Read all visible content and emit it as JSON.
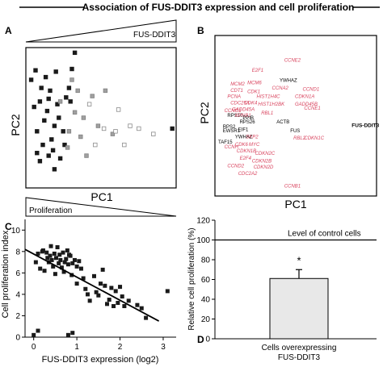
{
  "figure_title": "Association of FUS-DDIT3 expression and cell proliferation",
  "panels": {
    "a": {
      "letter": "A",
      "xlabel": "PC1",
      "ylabel": "PC2",
      "top_wedge_label": "FUS-DDIT3",
      "bottom_wedge_label": "Proliferation"
    },
    "b": {
      "letter": "B",
      "xlabel": "PC1",
      "ylabel": "PC2"
    },
    "c": {
      "letter": "C"
    },
    "d": {
      "letter": "D",
      "annotation": "Level of control cells",
      "significance": "*"
    }
  },
  "colors": {
    "gene_red": "#d9455f",
    "gene_black": "#000000",
    "bar_fill": "#e8e8e8",
    "marker_dark": "#1a1a1a",
    "marker_grey": "#a0a0a0"
  },
  "chart_data": [
    {
      "panel": "A",
      "type": "scatter",
      "xlabel": "PC1",
      "ylabel": "PC2",
      "series": [
        {
          "marker": "dark-filled",
          "points": [
            [
              0.02,
              0.78
            ],
            [
              0.05,
              0.85
            ],
            [
              0.08,
              0.62
            ],
            [
              0.12,
              0.8
            ],
            [
              0.13,
              0.55
            ],
            [
              0.15,
              0.7
            ],
            [
              0.18,
              0.44
            ],
            [
              0.2,
              0.6
            ],
            [
              0.06,
              0.4
            ],
            [
              0.1,
              0.3
            ],
            [
              0.14,
              0.22
            ],
            [
              0.18,
              0.12
            ],
            [
              0.22,
              0.2
            ],
            [
              0.08,
              0.18
            ],
            [
              0.16,
              0.34
            ],
            [
              0.24,
              0.4
            ],
            [
              0.26,
              0.65
            ],
            [
              0.28,
              0.72
            ],
            [
              0.3,
              0.86
            ],
            [
              0.32,
              0.98
            ],
            [
              0.11,
              0.48
            ],
            [
              0.04,
              0.58
            ],
            [
              0.19,
              0.84
            ],
            [
              0.21,
              0.5
            ],
            [
              0.09,
              0.72
            ],
            [
              0.25,
              0.3
            ],
            [
              0.06,
              0.24
            ],
            [
              0.17,
              0.26
            ],
            [
              0.29,
              0.62
            ],
            [
              0.14,
              0.64
            ],
            [
              0.99,
              0.42
            ]
          ]
        },
        {
          "marker": "grey-filled",
          "points": [
            [
              0.22,
              0.62
            ],
            [
              0.3,
              0.78
            ],
            [
              0.34,
              0.7
            ],
            [
              0.38,
              0.5
            ],
            [
              0.44,
              0.66
            ],
            [
              0.48,
              0.44
            ],
            [
              0.53,
              0.7
            ],
            [
              0.58,
              0.38
            ],
            [
              0.28,
              0.4
            ],
            [
              0.32,
              0.54
            ],
            [
              0.36,
              0.36
            ],
            [
              0.27,
              0.28
            ],
            [
              0.4,
              0.22
            ]
          ]
        },
        {
          "marker": "grey-open",
          "points": [
            [
              0.42,
              0.6
            ],
            [
              0.52,
              0.42
            ],
            [
              0.6,
              0.4
            ],
            [
              0.62,
              0.56
            ],
            [
              0.7,
              0.44
            ],
            [
              0.76,
              0.42
            ],
            [
              0.86,
              0.38
            ],
            [
              0.46,
              0.3
            ],
            [
              0.66,
              0.3
            ]
          ]
        }
      ]
    },
    {
      "panel": "B",
      "type": "scatter",
      "xlabel": "PC1",
      "ylabel": "PC2",
      "points": [
        {
          "label": "CCNE2",
          "color": "red",
          "x": 0.43,
          "y": 0.92
        },
        {
          "label": "E2F1",
          "color": "red",
          "x": 0.22,
          "y": 0.84
        },
        {
          "label": "YWHAZ",
          "color": "black",
          "x": 0.4,
          "y": 0.76
        },
        {
          "label": "MCM2",
          "color": "red",
          "x": 0.08,
          "y": 0.73
        },
        {
          "label": "MCM6",
          "color": "red",
          "x": 0.19,
          "y": 0.74
        },
        {
          "label": "CCNA2",
          "color": "red",
          "x": 0.35,
          "y": 0.7
        },
        {
          "label": "CDT1",
          "color": "red",
          "x": 0.08,
          "y": 0.68
        },
        {
          "label": "CDK1",
          "color": "red",
          "x": 0.19,
          "y": 0.67
        },
        {
          "label": "CCND1",
          "color": "red",
          "x": 0.55,
          "y": 0.69
        },
        {
          "label": "HIST1H4C",
          "color": "red",
          "x": 0.25,
          "y": 0.63
        },
        {
          "label": "CDKN1A",
          "color": "red",
          "x": 0.5,
          "y": 0.63
        },
        {
          "label": "PCNA",
          "color": "red",
          "x": 0.06,
          "y": 0.63
        },
        {
          "label": "CDC25A",
          "color": "red",
          "x": 0.08,
          "y": 0.58
        },
        {
          "label": "CDK4",
          "color": "red",
          "x": 0.17,
          "y": 0.58
        },
        {
          "label": "GADD45A",
          "color": "red",
          "x": 0.09,
          "y": 0.53
        },
        {
          "label": "HIST1H2BK",
          "color": "red",
          "x": 0.26,
          "y": 0.57
        },
        {
          "label": "GADD45B",
          "color": "red",
          "x": 0.5,
          "y": 0.57
        },
        {
          "label": "CCNE1",
          "color": "red",
          "x": 0.56,
          "y": 0.54
        },
        {
          "label": "CCNG1",
          "color": "red",
          "x": 0.04,
          "y": 0.52
        },
        {
          "label": "RBL1",
          "color": "red",
          "x": 0.28,
          "y": 0.5
        },
        {
          "label": "RPS10",
          "color": "black",
          "x": 0.06,
          "y": 0.48
        },
        {
          "label": "KPNB1",
          "color": "red",
          "x": 0.11,
          "y": 0.48
        },
        {
          "label": "PPIB",
          "color": "black",
          "x": 0.16,
          "y": 0.46
        },
        {
          "label": "RPS26",
          "color": "black",
          "x": 0.14,
          "y": 0.43
        },
        {
          "label": "ACTB",
          "color": "black",
          "x": 0.38,
          "y": 0.43
        },
        {
          "label": "RPS2",
          "color": "black",
          "x": 0.03,
          "y": 0.39
        },
        {
          "label": "EWSR1",
          "color": "black",
          "x": 0.03,
          "y": 0.36
        },
        {
          "label": "EIF1",
          "color": "black",
          "x": 0.13,
          "y": 0.37
        },
        {
          "label": "FUS-DDIT3",
          "color": "black",
          "x": 0.87,
          "y": 0.4
        },
        {
          "label": "FUS",
          "color": "black",
          "x": 0.47,
          "y": 0.36
        },
        {
          "label": "YWHAZ",
          "color": "black",
          "x": 0.11,
          "y": 0.31
        },
        {
          "label": "SKP2",
          "color": "red",
          "x": 0.18,
          "y": 0.31
        },
        {
          "label": "RBL2",
          "color": "red",
          "x": 0.49,
          "y": 0.3
        },
        {
          "label": "CDKN1C",
          "color": "red",
          "x": 0.56,
          "y": 0.3
        },
        {
          "label": "TAF15",
          "color": "black",
          "x": 0.0,
          "y": 0.27
        },
        {
          "label": "CCNH",
          "color": "red",
          "x": 0.04,
          "y": 0.23
        },
        {
          "label": "CDK6",
          "color": "red",
          "x": 0.11,
          "y": 0.25
        },
        {
          "label": "MYC",
          "color": "red",
          "x": 0.2,
          "y": 0.25
        },
        {
          "label": "CDKN1B",
          "color": "red",
          "x": 0.12,
          "y": 0.2
        },
        {
          "label": "CDKN2C",
          "color": "red",
          "x": 0.24,
          "y": 0.18
        },
        {
          "label": "E2F4",
          "color": "red",
          "x": 0.14,
          "y": 0.14
        },
        {
          "label": "CDKN2B",
          "color": "red",
          "x": 0.22,
          "y": 0.12
        },
        {
          "label": "CCND2",
          "color": "red",
          "x": 0.06,
          "y": 0.08
        },
        {
          "label": "CDKN2D",
          "color": "red",
          "x": 0.23,
          "y": 0.07
        },
        {
          "label": "CDC2A2",
          "color": "red",
          "x": 0.13,
          "y": 0.02
        },
        {
          "label": "CCNB1",
          "color": "red",
          "x": 0.43,
          "y": -0.08
        }
      ]
    },
    {
      "panel": "C",
      "type": "scatter",
      "xlabel": "FUS-DDIT3 expression (log2)",
      "ylabel": "Cell proliferation index",
      "xlim": [
        -0.2,
        3.3
      ],
      "ylim": [
        0,
        11
      ],
      "xticks": [
        0,
        1,
        2,
        3
      ],
      "yticks": [
        0,
        2,
        4,
        6,
        8,
        10
      ],
      "trendline": {
        "x": [
          -0.2,
          2.9
        ],
        "y": [
          8.2,
          1.5
        ]
      },
      "points": [
        [
          0.05,
          7.0
        ],
        [
          0.1,
          7.8
        ],
        [
          0.15,
          6.4
        ],
        [
          0.2,
          8.0
        ],
        [
          0.22,
          8.1
        ],
        [
          0.25,
          6.2
        ],
        [
          0.3,
          7.9
        ],
        [
          0.32,
          7.4
        ],
        [
          0.35,
          7.0
        ],
        [
          0.38,
          7.6
        ],
        [
          0.4,
          8.5
        ],
        [
          0.42,
          7.2
        ],
        [
          0.45,
          6.6
        ],
        [
          0.48,
          7.8
        ],
        [
          0.5,
          5.9
        ],
        [
          0.52,
          7.4
        ],
        [
          0.55,
          8.4
        ],
        [
          0.58,
          6.9
        ],
        [
          0.6,
          7.7
        ],
        [
          0.62,
          7.2
        ],
        [
          0.65,
          6.5
        ],
        [
          0.68,
          7.9
        ],
        [
          0.7,
          6.1
        ],
        [
          0.72,
          7.0
        ],
        [
          0.75,
          7.3
        ],
        [
          0.78,
          8.1
        ],
        [
          0.8,
          6.8
        ],
        [
          0.82,
          7.7
        ],
        [
          0.85,
          7.6
        ],
        [
          0.88,
          5.8
        ],
        [
          0.9,
          6.9
        ],
        [
          0.95,
          7.2
        ],
        [
          1.0,
          6.6
        ],
        [
          1.0,
          5.0
        ],
        [
          1.05,
          7.1
        ],
        [
          1.1,
          6.4
        ],
        [
          1.15,
          5.5
        ],
        [
          1.2,
          4.5
        ],
        [
          1.25,
          4.0
        ],
        [
          1.3,
          3.4
        ],
        [
          1.4,
          5.7
        ],
        [
          1.45,
          4.2
        ],
        [
          1.5,
          3.9
        ],
        [
          1.55,
          5.0
        ],
        [
          1.6,
          6.3
        ],
        [
          1.65,
          4.8
        ],
        [
          1.7,
          3.1
        ],
        [
          1.75,
          3.5
        ],
        [
          1.8,
          4.6
        ],
        [
          1.85,
          2.9
        ],
        [
          1.9,
          4.3
        ],
        [
          1.95,
          3.2
        ],
        [
          2.0,
          4.7
        ],
        [
          2.05,
          3.8
        ],
        [
          2.1,
          2.9
        ],
        [
          2.2,
          3.4
        ],
        [
          2.4,
          3.0
        ],
        [
          2.5,
          2.7
        ],
        [
          2.6,
          1.8
        ],
        [
          3.1,
          4.3
        ],
        [
          0.8,
          0.2
        ],
        [
          0.9,
          0.4
        ],
        [
          0.0,
          0.2
        ],
        [
          0.1,
          0.6
        ]
      ]
    },
    {
      "panel": "D",
      "type": "bar",
      "ylabel": "Relative cell proliferation (%)",
      "categories": [
        "Cells overexpressing FUS-DDIT3"
      ],
      "category_lines": [
        "Cells overexpressing",
        "FUS-DDIT3"
      ],
      "values": [
        61
      ],
      "error": [
        9
      ],
      "reference_line": 100,
      "ylim": [
        0,
        120
      ],
      "yticks": [
        0,
        20,
        40,
        60,
        80,
        100,
        120
      ]
    }
  ]
}
